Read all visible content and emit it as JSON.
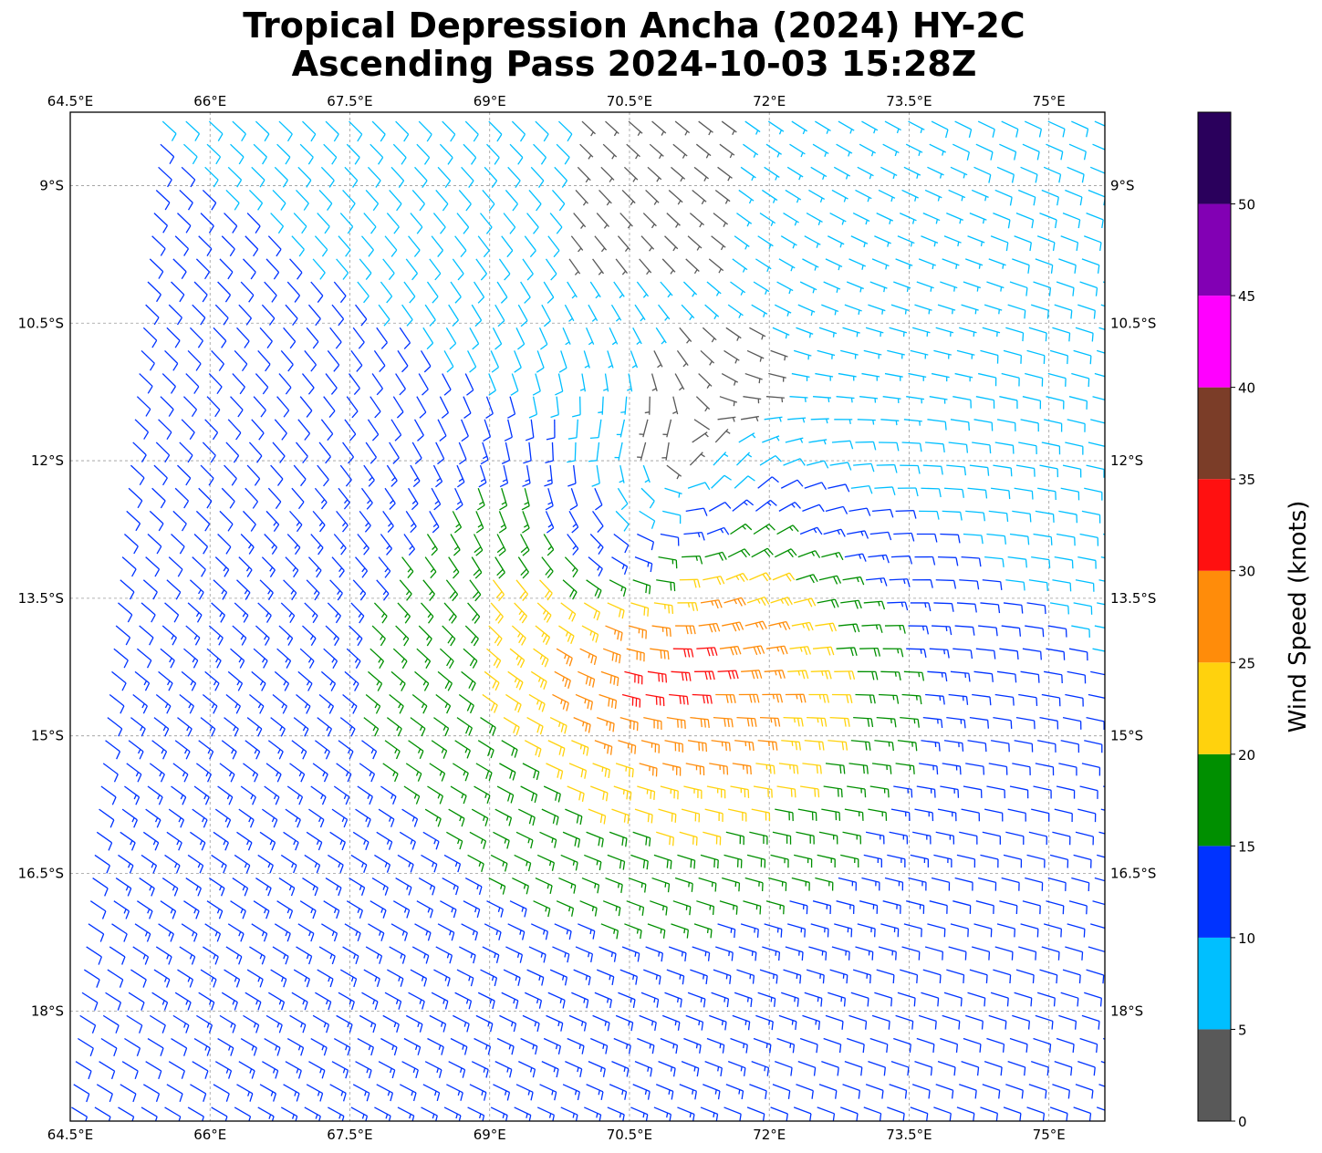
{
  "title": {
    "line1": "Tropical Depression Ancha (2024) HY-2C",
    "line2": "Ascending Pass 2024-10-03 15:28Z"
  },
  "map": {
    "projection": "PlateCarree",
    "lon_range": [
      64.5,
      75.6
    ],
    "lat_range": [
      -19.2,
      -8.2
    ],
    "gridlines": true,
    "lon_ticks": [
      "64.5°E",
      "66°E",
      "67.5°E",
      "69°E",
      "70.5°E",
      "72°E",
      "73.5°E",
      "75°E"
    ],
    "lon_tick_values": [
      64.5,
      66,
      67.5,
      69,
      70.5,
      72,
      73.5,
      75
    ],
    "lat_ticks": [
      "9°S",
      "10.5°S",
      "12°S",
      "13.5°S",
      "15°S",
      "16.5°S",
      "18°S"
    ],
    "lat_tick_values": [
      -9,
      -10.5,
      -12,
      -13.5,
      -15,
      -16.5,
      -18
    ]
  },
  "colorbar": {
    "label": "Wind Speed (knots)",
    "ticks": [
      "0",
      "5",
      "10",
      "15",
      "20",
      "25",
      "30",
      "35",
      "40",
      "45",
      "50"
    ],
    "bins": [
      {
        "min": 0,
        "max": 5,
        "color": "#595959"
      },
      {
        "min": 5,
        "max": 10,
        "color": "#00bfff"
      },
      {
        "min": 10,
        "max": 15,
        "color": "#0033ff"
      },
      {
        "min": 15,
        "max": 20,
        "color": "#008f00"
      },
      {
        "min": 20,
        "max": 25,
        "color": "#ffd20d"
      },
      {
        "min": 25,
        "max": 30,
        "color": "#ff8c0a"
      },
      {
        "min": 30,
        "max": 35,
        "color": "#ff1010"
      },
      {
        "min": 35,
        "max": 40,
        "color": "#7b3d28"
      },
      {
        "min": 40,
        "max": 45,
        "color": "#ff00ff"
      },
      {
        "min": 45,
        "max": 50,
        "color": "#8200b4"
      },
      {
        "min": 50,
        "max": 55,
        "color": "#2a005c"
      }
    ]
  },
  "chart_data": {
    "type": "wind_barbs",
    "units": "knots",
    "storm_center": {
      "lon": 70.4,
      "lat": -13.0
    },
    "max_wind_location": {
      "lon": 71.4,
      "lat": -14.3
    },
    "swath_west_edge": {
      "lon_at_north": 65.5,
      "lon_at_south": 64.5
    }
  }
}
